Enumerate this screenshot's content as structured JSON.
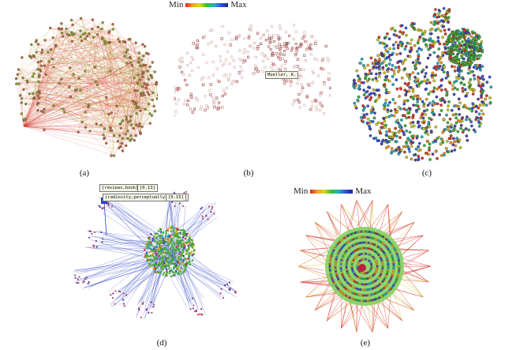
{
  "scales": {
    "b": {
      "min_label": "Min",
      "max_label": "Max"
    },
    "e": {
      "min_label": "Min",
      "max_label": "Max"
    }
  },
  "captions": {
    "a": "(a)",
    "b": "(b)",
    "c": "(c)",
    "d": "(d)",
    "e": "(e)"
  },
  "tags": {
    "b_node": "Mueller, K.",
    "d_tag1": "[reviews,book]",
    "d_tag1_val": "[0.13]",
    "d_tag2": "[radiosity,perceptually-driven]",
    "d_tag2_val": "[0.15]"
  },
  "colors": {
    "edge_red": "#d8352a",
    "edge_green": "#6fbf2a",
    "node_purple": "#5a3ea0",
    "edge_blue": "#2d3fc2",
    "node_brown": "#8b4a2a"
  }
}
